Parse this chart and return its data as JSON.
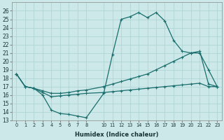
{
  "xlabel": "Humidex (Indice chaleur)",
  "bg_color": "#cce8e8",
  "grid_color": "#b0d4d4",
  "line_color": "#1a6e6e",
  "x_ticks": [
    0,
    1,
    2,
    3,
    4,
    5,
    6,
    7,
    8,
    10,
    11,
    12,
    13,
    14,
    15,
    16,
    17,
    18,
    19,
    20,
    21,
    22,
    23
  ],
  "ylim": [
    13,
    27
  ],
  "xlim": [
    -0.5,
    23.5
  ],
  "yticks": [
    13,
    14,
    15,
    16,
    17,
    18,
    19,
    20,
    21,
    22,
    23,
    24,
    25,
    26
  ],
  "series": [
    {
      "x": [
        0,
        1,
        2,
        3,
        4,
        5,
        6,
        7,
        8,
        10,
        11,
        12,
        13,
        14,
        15,
        16,
        17,
        18,
        19,
        20,
        21,
        22,
        23
      ],
      "y": [
        18.5,
        17,
        16.8,
        16.0,
        14.2,
        13.8,
        13.7,
        13.5,
        13.3,
        16.2,
        20.8,
        25.0,
        25.3,
        25.8,
        25.2,
        25.8,
        24.8,
        22.5,
        21.2,
        21.0,
        21.0,
        19.0,
        17.0
      ]
    },
    {
      "x": [
        0,
        1,
        2,
        3,
        4,
        5,
        6,
        7,
        8,
        10,
        11,
        12,
        13,
        14,
        15,
        16,
        17,
        18,
        19,
        20,
        21,
        22,
        23
      ],
      "y": [
        18.5,
        17,
        16.8,
        16.5,
        16.2,
        16.2,
        16.3,
        16.5,
        16.6,
        17.0,
        17.3,
        17.6,
        17.9,
        18.2,
        18.5,
        19.0,
        19.5,
        20.0,
        20.5,
        21.0,
        21.2,
        17.3,
        17.0
      ]
    },
    {
      "x": [
        0,
        1,
        2,
        3,
        4,
        5,
        6,
        7,
        8,
        10,
        11,
        12,
        13,
        14,
        15,
        16,
        17,
        18,
        19,
        20,
        21,
        22,
        23
      ],
      "y": [
        18.5,
        17,
        16.8,
        16.3,
        15.8,
        15.9,
        16.0,
        16.1,
        16.2,
        16.3,
        16.4,
        16.5,
        16.6,
        16.7,
        16.8,
        16.9,
        17.0,
        17.1,
        17.2,
        17.3,
        17.4,
        17.0,
        17.0
      ]
    }
  ]
}
